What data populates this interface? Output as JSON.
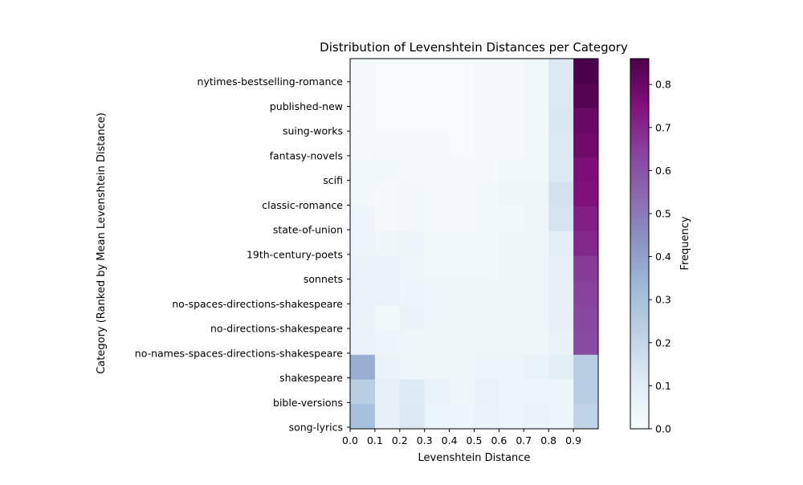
{
  "chart_data": {
    "type": "heatmap",
    "title": "Distribution of Levenshtein Distances per Category",
    "xlabel": "Levenshtein Distance",
    "ylabel": "Category (Ranked by Mean Levenshtein Distance)",
    "x_bins": [
      0.0,
      0.1,
      0.2,
      0.3,
      0.4,
      0.5,
      0.6,
      0.7,
      0.8,
      0.9,
      1.0
    ],
    "x_tick_labels": [
      "0.0",
      "0.1",
      "0.2",
      "0.3",
      "0.4",
      "0.5",
      "0.6",
      "0.7",
      "0.8",
      "0.9"
    ],
    "xlim": [
      0.0,
      1.0
    ],
    "categories": [
      "nytimes-bestselling-romance",
      "published-new",
      "suing-works",
      "fantasy-novels",
      "scifi",
      "classic-romance",
      "state-of-union",
      "19th-century-poets",
      "sonnets",
      "no-spaces-directions-shakespeare",
      "no-directions-shakespeare",
      "no-names-spaces-directions-shakespeare",
      "shakespeare",
      "bible-versions",
      "song-lyrics"
    ],
    "values": [
      [
        0.02,
        0.01,
        0.01,
        0.01,
        0.01,
        0.02,
        0.02,
        0.03,
        0.12,
        0.86
      ],
      [
        0.02,
        0.01,
        0.01,
        0.01,
        0.01,
        0.02,
        0.02,
        0.03,
        0.12,
        0.84
      ],
      [
        0.02,
        0.01,
        0.01,
        0.01,
        0.01,
        0.02,
        0.02,
        0.03,
        0.13,
        0.8
      ],
      [
        0.02,
        0.02,
        0.02,
        0.02,
        0.01,
        0.02,
        0.02,
        0.03,
        0.12,
        0.79
      ],
      [
        0.03,
        0.03,
        0.02,
        0.02,
        0.02,
        0.02,
        0.03,
        0.03,
        0.12,
        0.76
      ],
      [
        0.03,
        0.02,
        0.03,
        0.02,
        0.02,
        0.03,
        0.04,
        0.04,
        0.15,
        0.75
      ],
      [
        0.05,
        0.02,
        0.03,
        0.02,
        0.02,
        0.03,
        0.03,
        0.04,
        0.14,
        0.72
      ],
      [
        0.05,
        0.04,
        0.05,
        0.03,
        0.03,
        0.03,
        0.04,
        0.04,
        0.1,
        0.7
      ],
      [
        0.06,
        0.06,
        0.04,
        0.03,
        0.03,
        0.03,
        0.04,
        0.04,
        0.08,
        0.66
      ],
      [
        0.06,
        0.06,
        0.05,
        0.04,
        0.04,
        0.04,
        0.04,
        0.04,
        0.08,
        0.64
      ],
      [
        0.06,
        0.03,
        0.06,
        0.04,
        0.04,
        0.04,
        0.04,
        0.04,
        0.08,
        0.63
      ],
      [
        0.06,
        0.05,
        0.04,
        0.04,
        0.04,
        0.04,
        0.04,
        0.04,
        0.07,
        0.62
      ],
      [
        0.36,
        0.06,
        0.04,
        0.04,
        0.04,
        0.05,
        0.05,
        0.07,
        0.09,
        0.24
      ],
      [
        0.24,
        0.08,
        0.11,
        0.06,
        0.04,
        0.07,
        0.05,
        0.05,
        0.05,
        0.24
      ],
      [
        0.3,
        0.08,
        0.12,
        0.05,
        0.05,
        0.06,
        0.05,
        0.06,
        0.05,
        0.21
      ]
    ],
    "colormap": "BuPu",
    "colorbar": {
      "label": "Frequency",
      "min": 0.0,
      "max": 0.86,
      "ticks": [
        "0.0",
        "0.1",
        "0.2",
        "0.3",
        "0.4",
        "0.5",
        "0.6",
        "0.7",
        "0.8"
      ]
    },
    "grid": false
  }
}
